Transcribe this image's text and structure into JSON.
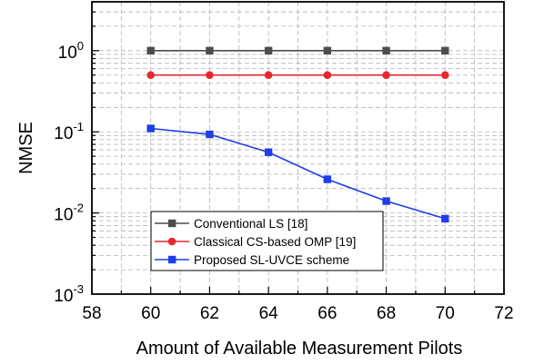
{
  "chart_data": {
    "type": "line",
    "title": "",
    "xlabel": "Amount of Available Measurement  Pilots",
    "ylabel": "NMSE",
    "xlim": [
      58,
      72
    ],
    "ylim": [
      0.001,
      4
    ],
    "yscale": "log",
    "x_ticks": [
      58,
      60,
      62,
      64,
      66,
      68,
      70,
      72
    ],
    "x_tick_labels": [
      "58",
      "60",
      "62",
      "64",
      "66",
      "68",
      "70",
      "72"
    ],
    "y_ticks": [
      {
        "value": 0.001,
        "base": "10",
        "exp": "-3"
      },
      {
        "value": 0.01,
        "base": "10",
        "exp": "-2"
      },
      {
        "value": 0.1,
        "base": "10",
        "exp": "-1"
      },
      {
        "value": 1,
        "base": "10",
        "exp": "0"
      }
    ],
    "grid": true,
    "legend_position": "bottom-center",
    "x": [
      60,
      62,
      64,
      66,
      68,
      70
    ],
    "series": [
      {
        "name": "Conventional LS [18]",
        "marker": "square",
        "color": "#4d4d4d",
        "values": [
          1.0,
          1.0,
          1.0,
          1.0,
          1.0,
          1.0
        ]
      },
      {
        "name": "Classical CS-based OMP [19]",
        "marker": "circle",
        "color": "#e8262b",
        "values": [
          0.5,
          0.5,
          0.5,
          0.5,
          0.5,
          0.5
        ]
      },
      {
        "name": "Proposed SL-UVCE scheme",
        "marker": "square",
        "color": "#1f3de8",
        "values": [
          0.11,
          0.093,
          0.056,
          0.026,
          0.014,
          0.0085
        ]
      }
    ]
  }
}
